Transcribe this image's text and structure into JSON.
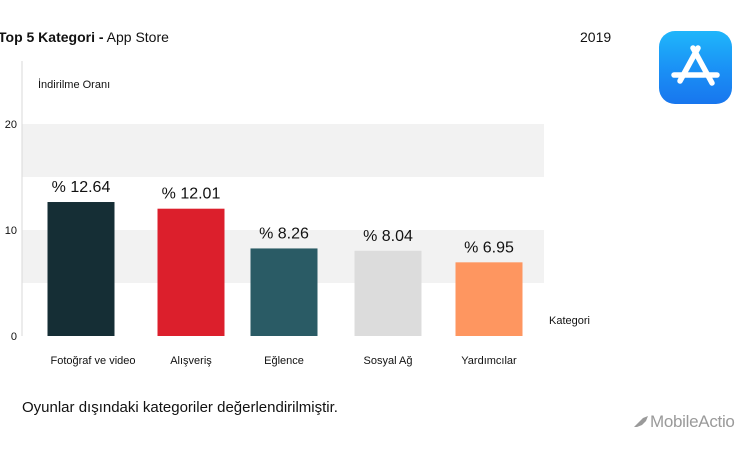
{
  "header": {
    "title_bold": "Top 5 Kategori -",
    "title_rest": " App Store",
    "year": "2019"
  },
  "logo": {
    "icon": "app-store-icon",
    "color": "#1a8ff5"
  },
  "chart_data": {
    "type": "bar",
    "ylabel": "İndirilme Oranı",
    "xlabel": "Kategori",
    "ylim": [
      0,
      25
    ],
    "yticks": [
      0,
      10,
      20
    ],
    "grid": "horizontal bands",
    "categories": [
      "Fotoğraf ve video",
      "Alışveriş",
      "Eğlence",
      "Sosyal Ağ",
      "Yardımcılar"
    ],
    "values": [
      12.64,
      12.01,
      8.26,
      8.04,
      6.95
    ],
    "labels": [
      "% 12.64",
      "% 12.01",
      "% 8.26",
      "% 8.04",
      "% 6.95"
    ],
    "colors": [
      "#152e35",
      "#dc1f2c",
      "#2a5b65",
      "#dcdcdc",
      "#fe9660"
    ]
  },
  "footnote": "Oyunlar dışındaki kategoriler değerlendirilmiştir.",
  "brand": {
    "name": "MobileActio",
    "icon": "rocket-icon"
  }
}
